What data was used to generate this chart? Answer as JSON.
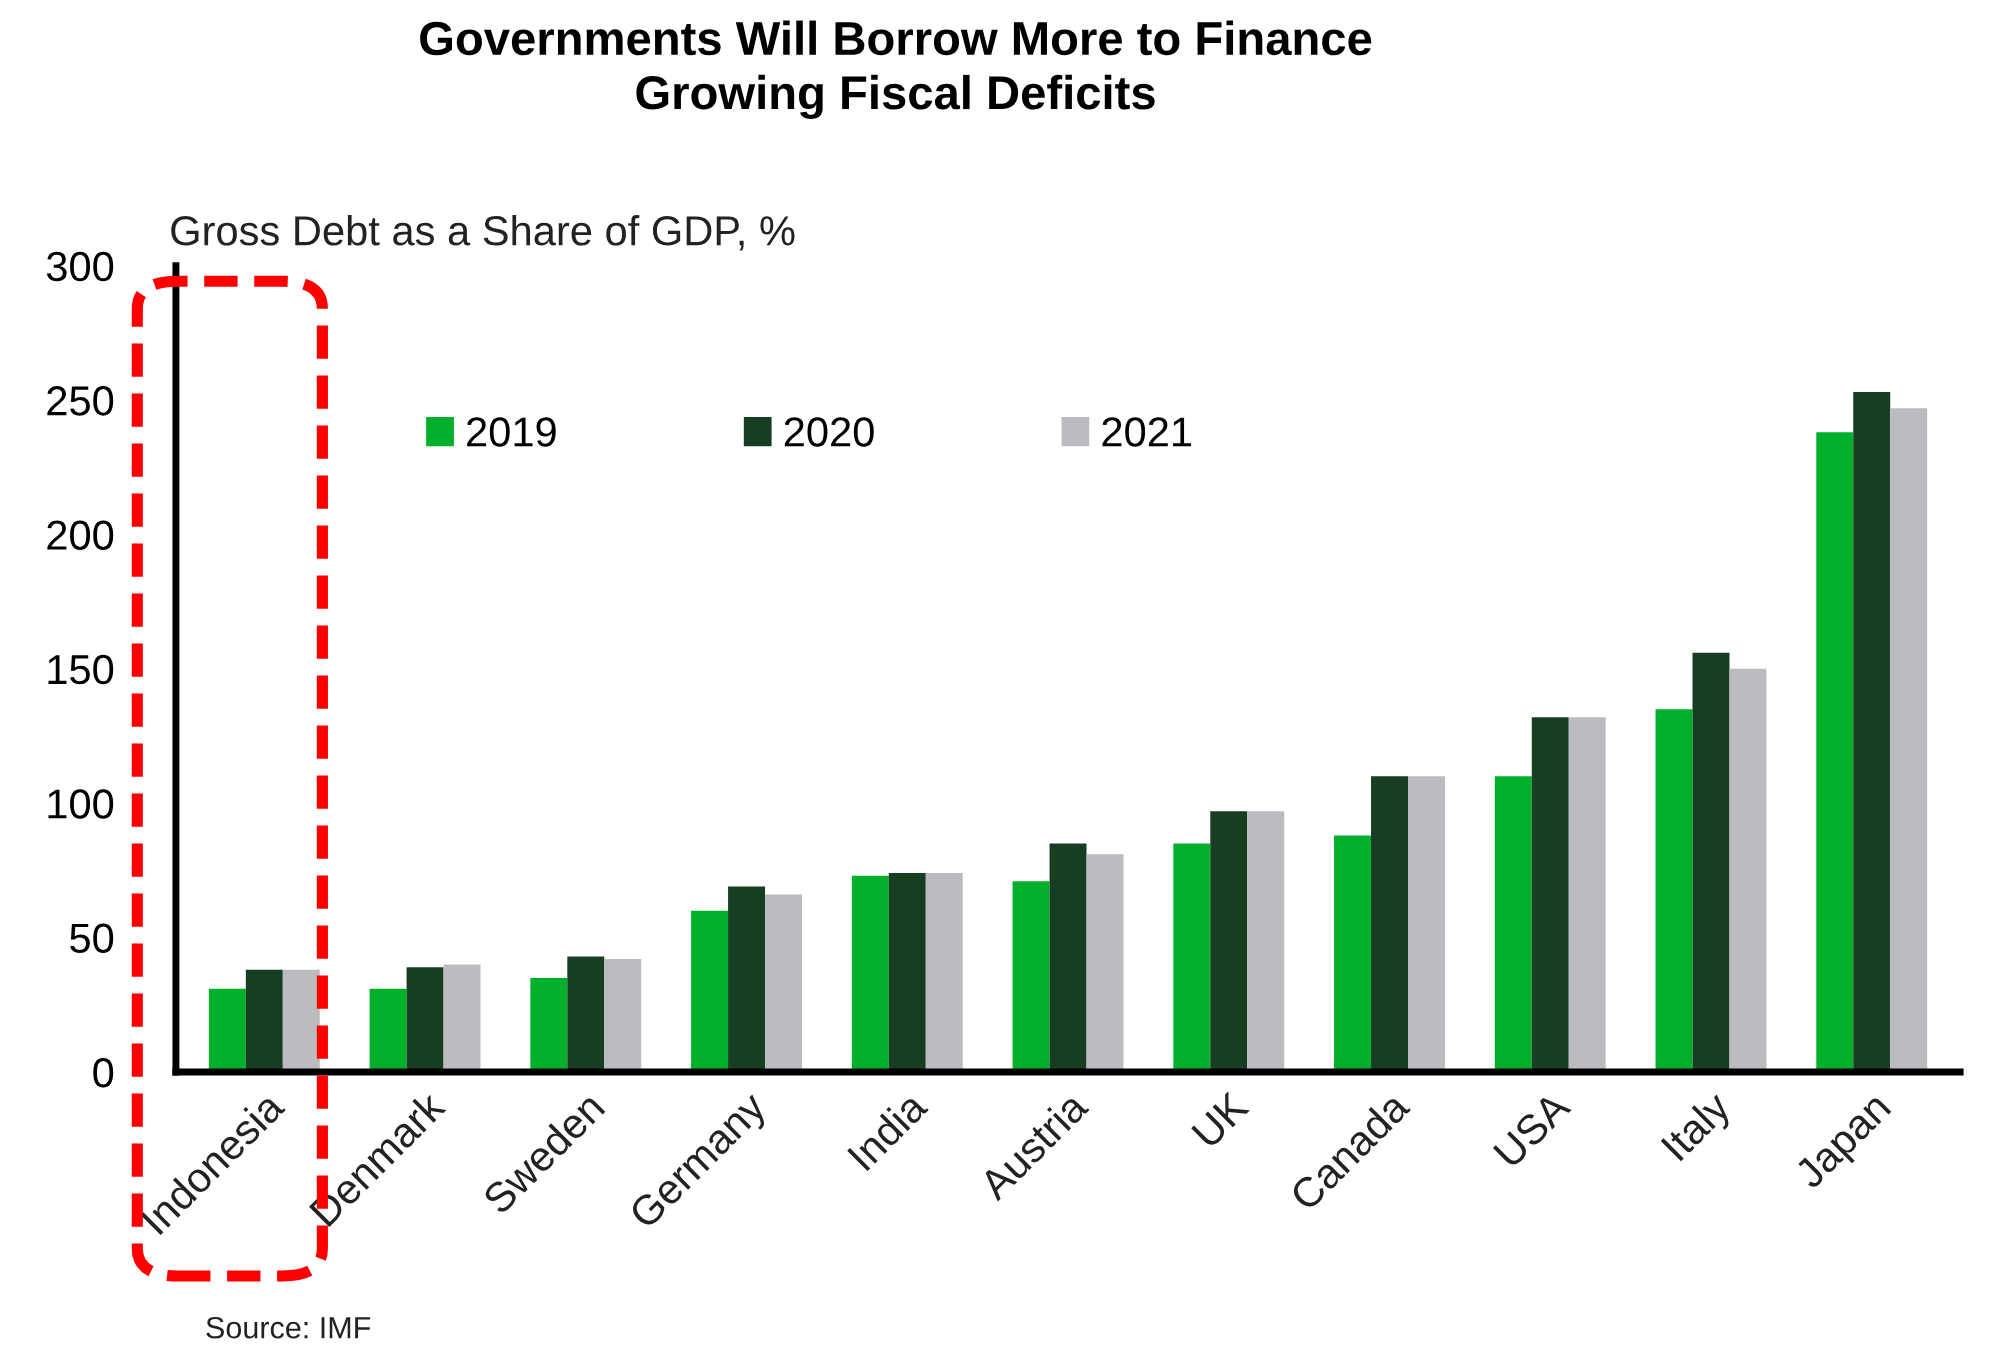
{
  "chart_data": {
    "type": "bar",
    "title": "Governments Will Borrow More to Finance\nGrowing Fiscal Deficits",
    "ylabel": "Gross Debt as a Share of GDP, %",
    "categories": [
      "Indonesia",
      "Denmark",
      "Sweden",
      "Germany",
      "India",
      "Austria",
      "UK",
      "Canada",
      "USA",
      "Italy",
      "Japan"
    ],
    "series": [
      {
        "name": "2019",
        "color": "#00b02a",
        "values": [
          31,
          31,
          35,
          60,
          73,
          71,
          85,
          88,
          110,
          135,
          238
        ]
      },
      {
        "name": "2020",
        "color": "#173d22",
        "values": [
          38,
          39,
          43,
          69,
          74,
          85,
          97,
          110,
          132,
          156,
          253
        ]
      },
      {
        "name": "2021",
        "color": "#bcbcc0",
        "values": [
          38,
          40,
          42,
          66,
          74,
          81,
          97,
          110,
          132,
          150,
          247
        ]
      }
    ],
    "ylim": [
      0,
      300
    ],
    "yticks": [
      0,
      50,
      100,
      150,
      200,
      250,
      300
    ],
    "grid": false,
    "legend": "top left",
    "annotations": [
      "Source: IMF"
    ]
  }
}
